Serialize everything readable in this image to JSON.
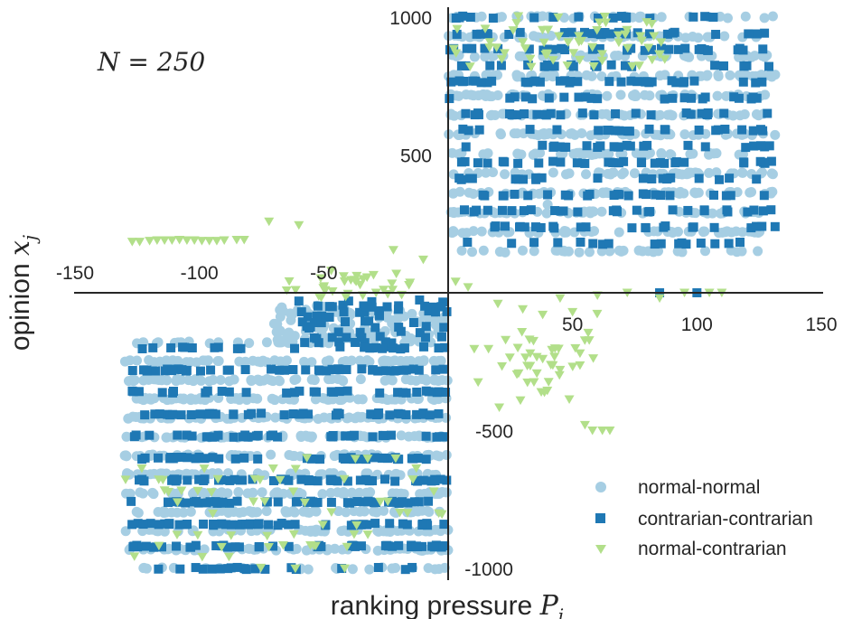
{
  "chart_data": {
    "type": "scatter",
    "annotation": "N = 250",
    "xlabel_text": "ranking pressure ",
    "xlabel_math": "P",
    "xlabel_sub": "i",
    "ylabel_text": "opinion ",
    "ylabel_math": "x",
    "ylabel_sub": "j",
    "xlim": [
      -150,
      150
    ],
    "ylim": [
      -1000,
      1000
    ],
    "x_ticks": [
      -150,
      -100,
      -50,
      50,
      100,
      150
    ],
    "y_ticks": [
      1000,
      500,
      -500,
      -1000
    ],
    "x_tick_labels": [
      "-150",
      "-100",
      "-50",
      "50",
      "100",
      "150"
    ],
    "y_tick_labels": [
      "1000",
      "500",
      "-500",
      "-1000"
    ],
    "grid": false,
    "legend_position": "bottom-right",
    "series": [
      {
        "name": "normal-normal",
        "marker": "circle",
        "color": "#a6cee3",
        "regions": [
          {
            "x": [
              0,
              132
            ],
            "y": [
              150,
              1000
            ],
            "count": 650
          },
          {
            "x": [
              -130,
              0
            ],
            "y": [
              -1000,
              -180
            ],
            "count": 750
          },
          {
            "x": [
              -70,
              0
            ],
            "y": [
              -180,
              -50
            ],
            "count": 110
          }
        ],
        "points": [
          [
            2,
            360
          ],
          [
            40,
            320
          ],
          [
            -22,
            -100
          ],
          [
            -45,
            -70
          ],
          [
            -50,
            -160
          ]
        ]
      },
      {
        "name": "contrarian-contrarian",
        "marker": "square",
        "color": "#1f78b4",
        "regions": [
          {
            "x": [
              0,
              132
            ],
            "y": [
              180,
              1000
            ],
            "count": 380
          },
          {
            "x": [
              -128,
              0
            ],
            "y": [
              -1000,
              -200
            ],
            "count": 420
          },
          {
            "x": [
              -60,
              0
            ],
            "y": [
              -200,
              -30
            ],
            "count": 70
          }
        ],
        "points": [
          [
            85,
            0
          ],
          [
            100,
            0
          ],
          [
            -60,
            -30
          ],
          [
            -40,
            -30
          ],
          [
            -20,
            -60
          ],
          [
            -5,
            -280
          ]
        ]
      },
      {
        "name": "normal-contrarian",
        "marker": "triangle-down",
        "color": "#b2df8a",
        "regions": [
          {
            "x": [
              2,
              90
            ],
            "y": [
              800,
              1000
            ],
            "count": 60
          },
          {
            "x": [
              10,
              60
            ],
            "y": [
              -420,
              -80
            ],
            "count": 40
          },
          {
            "x": [
              -130,
              0
            ],
            "y": [
              -1000,
              -600
            ],
            "count": 60
          },
          {
            "x": [
              -65,
              -15
            ],
            "y": [
              -20,
              70
            ],
            "count": 30
          }
        ],
        "points": [
          [
            -127,
            185
          ],
          [
            -124,
            185
          ],
          [
            -120,
            188
          ],
          [
            -117,
            190
          ],
          [
            -114,
            190
          ],
          [
            -111,
            190
          ],
          [
            -108,
            192
          ],
          [
            -105,
            190
          ],
          [
            -102,
            190
          ],
          [
            -99,
            188
          ],
          [
            -96,
            188
          ],
          [
            -93,
            188
          ],
          [
            -90,
            190
          ],
          [
            -85,
            192
          ],
          [
            -82,
            192
          ],
          [
            -72,
            258
          ],
          [
            -60,
            245
          ],
          [
            -47,
            80
          ],
          [
            -42,
            60
          ],
          [
            -37,
            40
          ],
          [
            -22,
            155
          ],
          [
            -10,
            120
          ],
          [
            20,
            -40
          ],
          [
            30,
            -60
          ],
          [
            38,
            -80
          ],
          [
            45,
            -20
          ],
          [
            50,
            -70
          ],
          [
            60,
            -10
          ],
          [
            72,
            0
          ],
          [
            85,
            -20
          ],
          [
            95,
            0
          ],
          [
            105,
            0
          ],
          [
            110,
            0
          ],
          [
            28,
            -200
          ],
          [
            33,
            -220
          ],
          [
            38,
            -240
          ],
          [
            45,
            -280
          ],
          [
            53,
            -220
          ],
          [
            55,
            -480
          ],
          [
            58,
            -500
          ],
          [
            62,
            -500
          ],
          [
            65,
            -500
          ],
          [
            3,
            40
          ],
          [
            8,
            20
          ]
        ]
      }
    ]
  }
}
